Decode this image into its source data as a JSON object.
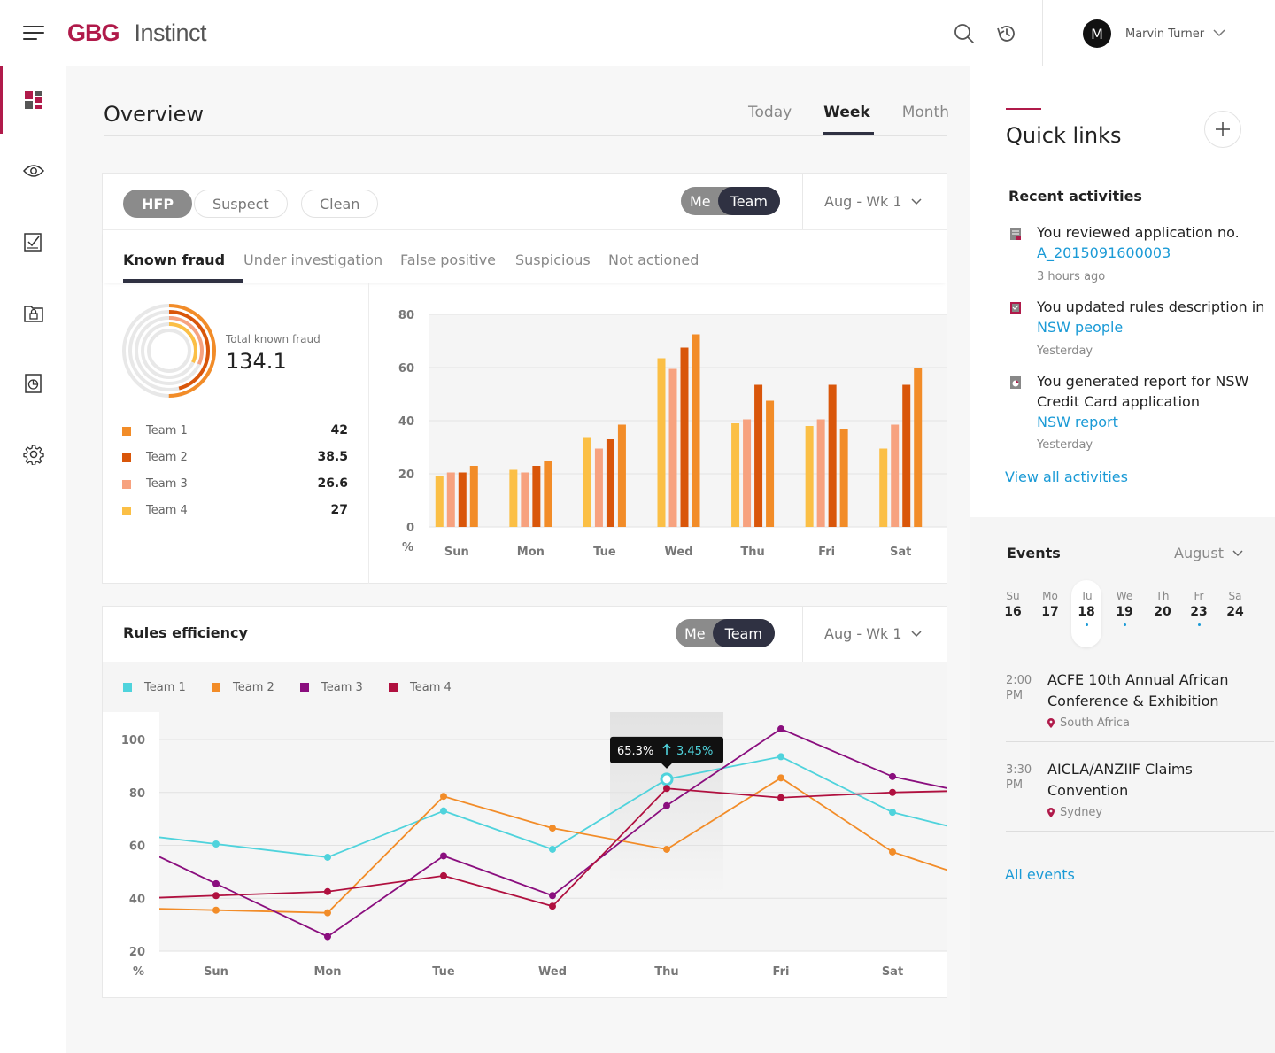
{
  "header": {
    "brand": "GBG",
    "product": "Instinct",
    "user": {
      "initial": "M",
      "name": "Marvin Turner"
    }
  },
  "nav": {
    "items": [
      "dashboard-icon",
      "eye-icon",
      "checklist-icon",
      "lock-folder-icon",
      "report-icon",
      "gear-icon"
    ],
    "active": 0
  },
  "overview": {
    "title": "Overview",
    "range_tabs": [
      "Today",
      "Week",
      "Month"
    ],
    "active_range": "Week"
  },
  "fraud_card": {
    "pills": [
      "HFP",
      "Suspect",
      "Clean"
    ],
    "active_pill": "HFP",
    "toggle": [
      "Me",
      "Team"
    ],
    "toggle_active": "Team",
    "week": "Aug - Wk 1",
    "subtabs": [
      "Known fraud",
      "Under investigation",
      "False positive",
      "Suspicious",
      "Not actioned"
    ],
    "active_subtab": "Known fraud",
    "total_label": "Total known fraud",
    "total_value": "134.1",
    "teams": [
      {
        "name": "Team 1",
        "value": "42",
        "color": "#f28c28"
      },
      {
        "name": "Team 2",
        "value": "38.5",
        "color": "#d9560a"
      },
      {
        "name": "Team 3",
        "value": "26.6",
        "color": "#f7a27f"
      },
      {
        "name": "Team 4",
        "value": "27",
        "color": "#fbbf45"
      }
    ]
  },
  "chart_data": [
    {
      "type": "bar",
      "categories": [
        "Sun",
        "Mon",
        "Tue",
        "Wed",
        "Thu",
        "Fri",
        "Sat"
      ],
      "ylim": [
        0,
        80
      ],
      "yticks": [
        0,
        20,
        40,
        60,
        80
      ],
      "yunit": "%",
      "series": [
        {
          "name": "Team 4",
          "color": "#fbbf45",
          "values": [
            19,
            21.5,
            33.5,
            63.5,
            39,
            38,
            29.5
          ]
        },
        {
          "name": "Team 3",
          "color": "#f7a27f",
          "values": [
            20.5,
            20.5,
            29.5,
            59.5,
            40.5,
            40.5,
            38.5
          ]
        },
        {
          "name": "Team 2",
          "color": "#d9560a",
          "values": [
            20.5,
            23,
            33,
            67.5,
            53.5,
            53.5,
            53.5
          ]
        },
        {
          "name": "Team 1",
          "color": "#f28c28",
          "values": [
            23,
            25,
            38.5,
            72.5,
            47.5,
            37,
            60
          ]
        }
      ],
      "grid": true
    },
    {
      "type": "line",
      "categories": [
        "Sun",
        "Mon",
        "Tue",
        "Wed",
        "Thu",
        "Fri",
        "Sat"
      ],
      "ylim": [
        20,
        100
      ],
      "yticks": [
        20,
        40,
        60,
        80,
        100
      ],
      "yunit": "%",
      "series": [
        {
          "name": "Team 1",
          "color": "#4fd3dc",
          "values": [
            60.5,
            55.5,
            73,
            58.5,
            85,
            93.5,
            72.5
          ]
        },
        {
          "name": "Team 2",
          "color": "#f28c28",
          "values": [
            35.5,
            34.5,
            78.5,
            66.5,
            58.5,
            85.5,
            57.5
          ]
        },
        {
          "name": "Team 3",
          "color": "#8a0e7e",
          "values": [
            45.5,
            25.5,
            56,
            41,
            75,
            104,
            86
          ]
        },
        {
          "name": "Team 4",
          "color": "#b0103f",
          "values": [
            41,
            42.5,
            48.5,
            37,
            81.5,
            78,
            80
          ]
        }
      ],
      "highlight_category": "Thu",
      "tooltip": {
        "value": "65.3%",
        "change": "3.45%"
      },
      "grid": true
    }
  ],
  "rules_card": {
    "title": "Rules efficiency",
    "toggle": [
      "Me",
      "Team"
    ],
    "toggle_active": "Team",
    "week": "Aug - Wk 1",
    "legend": [
      {
        "name": "Team 1",
        "color": "#4fd3dc"
      },
      {
        "name": "Team 2",
        "color": "#f28c28"
      },
      {
        "name": "Team 3",
        "color": "#8a0e7e"
      },
      {
        "name": "Team 4",
        "color": "#b0103f"
      }
    ]
  },
  "quick_links": {
    "title": "Quick links",
    "recent_title": "Recent activities",
    "activities": [
      {
        "text": "You reviewed application no.",
        "link": "A_2015091600003",
        "time": "3 hours ago"
      },
      {
        "text": "You updated rules description in",
        "link": "NSW people",
        "time": "Yesterday"
      },
      {
        "text": "You generated report for NSW Credit Card application",
        "link": "NSW report",
        "time": "Yesterday"
      }
    ],
    "view_all": "View all activities"
  },
  "events": {
    "title": "Events",
    "month": "August",
    "days": [
      {
        "name": "Su",
        "date": "16",
        "dot": false
      },
      {
        "name": "Mo",
        "date": "17",
        "dot": false
      },
      {
        "name": "Tu",
        "date": "18",
        "dot": true,
        "selected": true
      },
      {
        "name": "We",
        "date": "19",
        "dot": true
      },
      {
        "name": "Th",
        "date": "20",
        "dot": false
      },
      {
        "name": "Fr",
        "date": "23",
        "dot": true
      },
      {
        "name": "Sa",
        "date": "24",
        "dot": false
      }
    ],
    "items": [
      {
        "time": "2:00",
        "ampm": "PM",
        "name": "ACFE 10th Annual African Conference & Exhibition",
        "location": "South Africa"
      },
      {
        "time": "3:30",
        "ampm": "PM",
        "name": "AICLA/ANZIIF Claims Convention",
        "location": "Sydney"
      }
    ],
    "all_link": "All events"
  }
}
